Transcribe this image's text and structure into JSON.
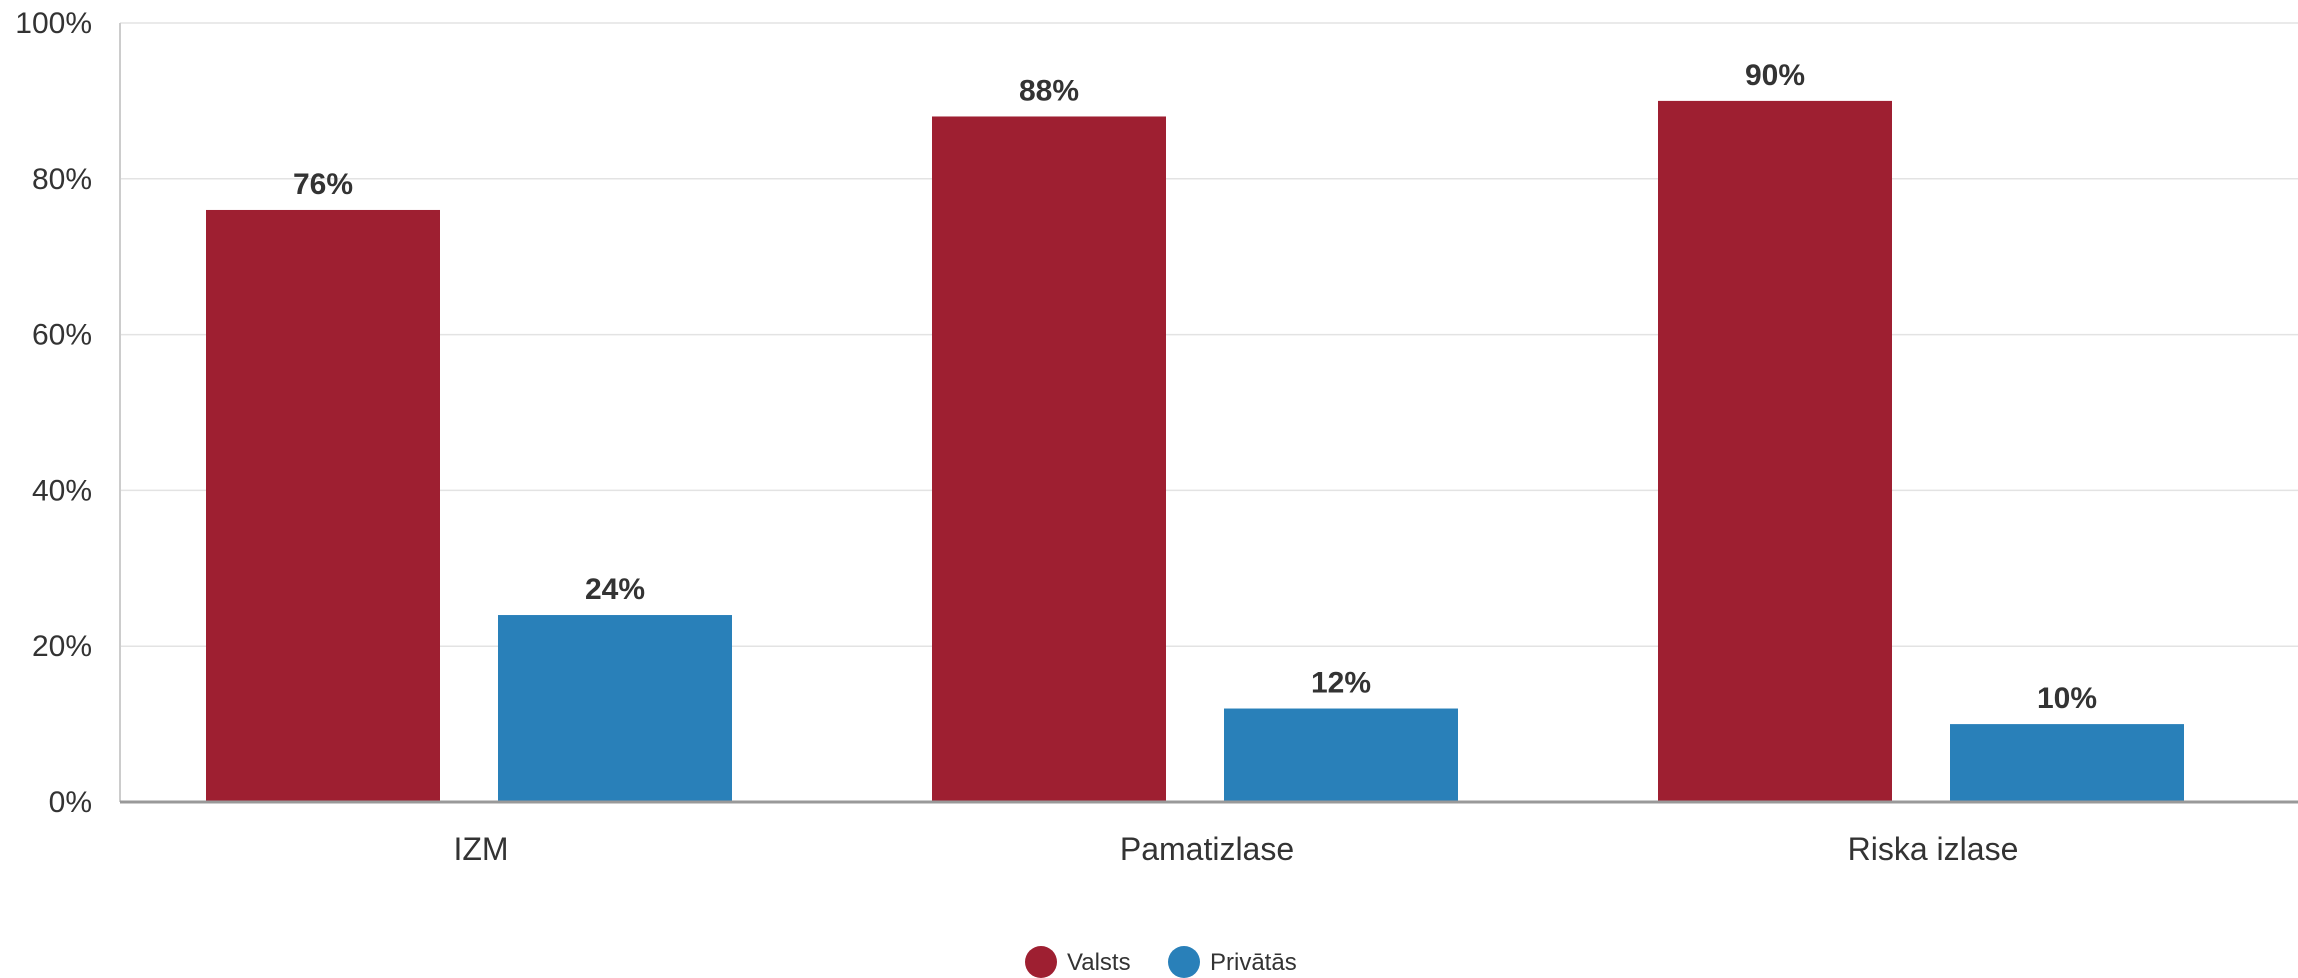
{
  "chart_data": {
    "type": "bar",
    "categories": [
      "IZM",
      "Pamatizlase",
      "Riska izlase"
    ],
    "series": [
      {
        "name": "Valsts",
        "values": [
          76,
          88,
          90
        ],
        "labels": [
          "76%",
          "88%",
          "90%"
        ],
        "color": "#9e1f31"
      },
      {
        "name": "Privātās",
        "values": [
          24,
          12,
          10
        ],
        "labels": [
          "24%",
          "12%",
          "10%"
        ],
        "color": "#2980b9"
      }
    ],
    "yticks": [
      0,
      20,
      40,
      60,
      80,
      100
    ],
    "ytick_labels": [
      "0%",
      "20%",
      "40%",
      "60%",
      "80%",
      "100%"
    ],
    "ylim": [
      0,
      100
    ],
    "grid": true,
    "legend_position": "bottom-center",
    "title": "",
    "xlabel": "",
    "ylabel": ""
  }
}
